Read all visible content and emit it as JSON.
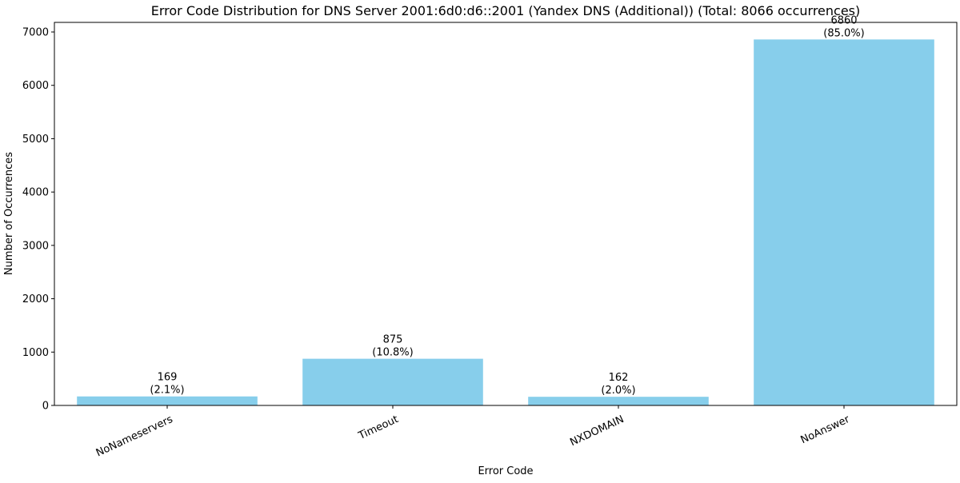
{
  "chart_data": {
    "type": "bar",
    "title": "Error Code Distribution for DNS Server 2001:6d0:d6::2001 (Yandex DNS (Additional)) (Total: 8066 occurrences)",
    "xlabel": "Error Code",
    "ylabel": "Number of Occurrences",
    "categories": [
      "NoNameservers",
      "Timeout",
      "NXDOMAIN",
      "NoAnswer"
    ],
    "values": [
      169,
      875,
      162,
      6860
    ],
    "value_labels": [
      "169",
      "875",
      "162",
      "6860"
    ],
    "percent_labels": [
      "(2.1%)",
      "(10.8%)",
      "(2.0%)",
      "(85.0%)"
    ],
    "ylim": [
      0,
      7180
    ],
    "yticks": [
      0,
      1000,
      2000,
      3000,
      4000,
      5000,
      6000,
      7000
    ],
    "ytick_labels": [
      "0",
      "1000",
      "2000",
      "3000",
      "4000",
      "5000",
      "6000",
      "7000"
    ],
    "x_tick_rotation_deg": 25,
    "grid": false,
    "bar_color": "#87CEEB"
  }
}
